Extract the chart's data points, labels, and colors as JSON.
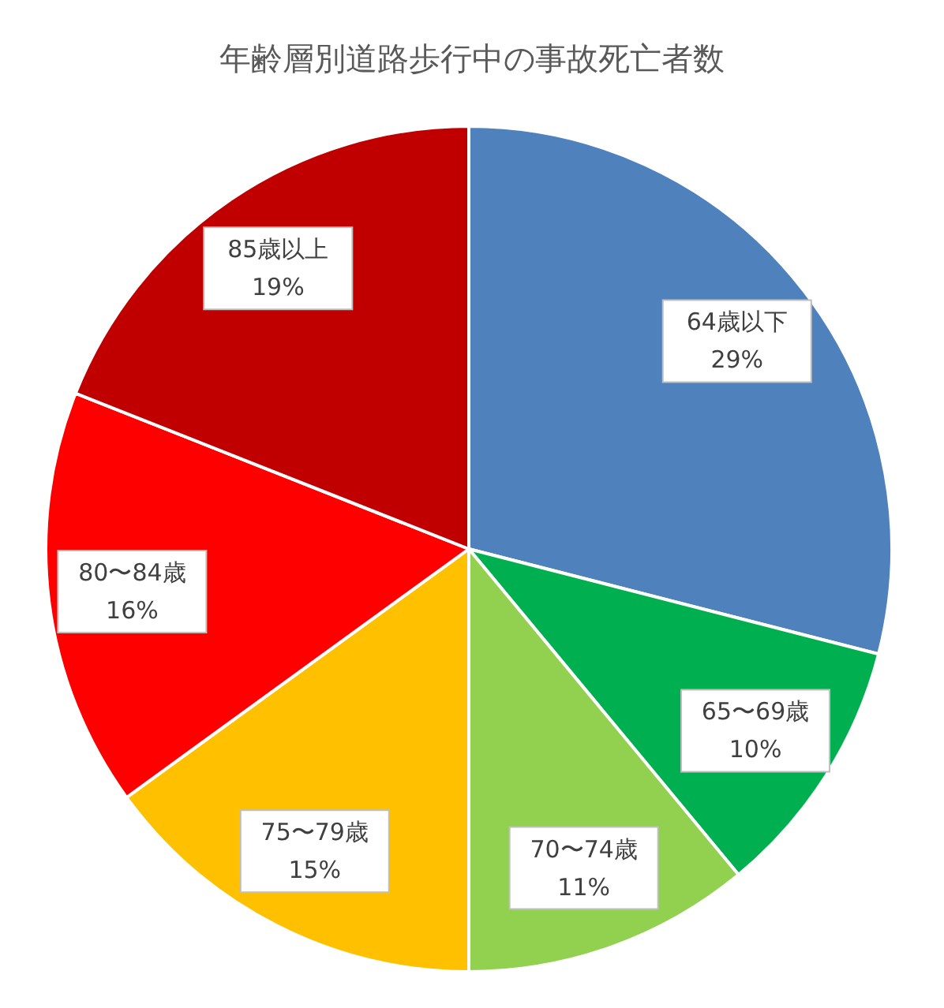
{
  "chart_data": {
    "type": "pie",
    "title": "年齢層別道路歩行中の事故死亡者数",
    "categories": [
      "64歳以下",
      "65〜69歳",
      "70〜74歳",
      "75〜79歳",
      "80〜84歳",
      "85歳以上"
    ],
    "values": [
      29,
      10,
      11,
      15,
      16,
      19
    ],
    "value_labels": [
      "29%",
      "10%",
      "11%",
      "15%",
      "16%",
      "19%"
    ],
    "colors": [
      "#4f81bd",
      "#00b050",
      "#92d050",
      "#ffc000",
      "#ff0000",
      "#c00000"
    ]
  }
}
